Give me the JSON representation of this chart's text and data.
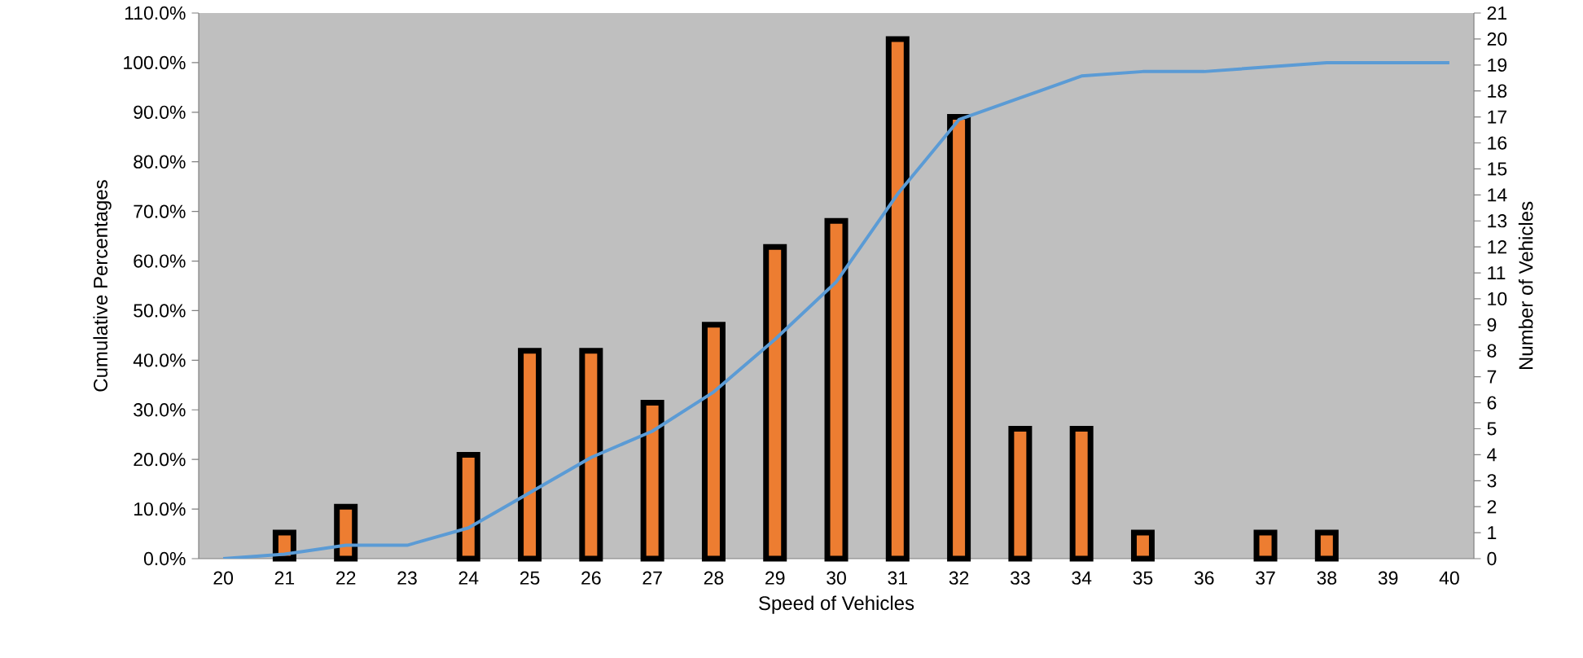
{
  "chart_data": {
    "type": "bar",
    "xlabel": "Speed of Vehicles",
    "ylabel": "Cumulative Percentages",
    "y2label": "Number of Vehicles",
    "categories": [
      "20",
      "21",
      "22",
      "23",
      "24",
      "25",
      "26",
      "27",
      "28",
      "29",
      "30",
      "31",
      "32",
      "33",
      "34",
      "35",
      "36",
      "37",
      "38",
      "39",
      "40"
    ],
    "series": [
      {
        "axis": "y2",
        "color": "#ed7d31",
        "values": [
          0,
          1,
          2,
          0,
          4,
          8,
          8,
          6,
          9,
          12,
          13,
          20,
          17,
          5,
          5,
          1,
          0,
          1,
          1,
          0,
          0
        ]
      },
      {
        "type": "line",
        "axis": "y",
        "color": "#5b9bd5",
        "values": [
          0,
          0.9,
          2.7,
          2.7,
          6.2,
          13.3,
          20.4,
          25.7,
          33.6,
          44.2,
          55.8,
          73.5,
          88.5,
          92.9,
          97.3,
          98.2,
          98.2,
          99.1,
          100,
          100,
          100
        ]
      }
    ],
    "ylim": [
      0,
      110
    ],
    "yticks": [
      {
        "value": 0,
        "label": "0.0%"
      },
      {
        "value": 10,
        "label": "10.0%"
      },
      {
        "value": 20,
        "label": "20.0%"
      },
      {
        "value": 30,
        "label": "30.0%"
      },
      {
        "value": 40,
        "label": "40.0%"
      },
      {
        "value": 50,
        "label": "50.0%"
      },
      {
        "value": 60,
        "label": "60.0%"
      },
      {
        "value": 70,
        "label": "70.0%"
      },
      {
        "value": 80,
        "label": "80.0%"
      },
      {
        "value": 90,
        "label": "90.0%"
      },
      {
        "value": 100,
        "label": "100.0%"
      },
      {
        "value": 110,
        "label": "110.0%"
      }
    ],
    "y2lim": [
      0,
      21
    ],
    "y2ticks": [
      0,
      1,
      2,
      3,
      4,
      5,
      6,
      7,
      8,
      9,
      10,
      11,
      12,
      13,
      14,
      15,
      16,
      17,
      18,
      19,
      20,
      21
    ],
    "grid": false
  }
}
